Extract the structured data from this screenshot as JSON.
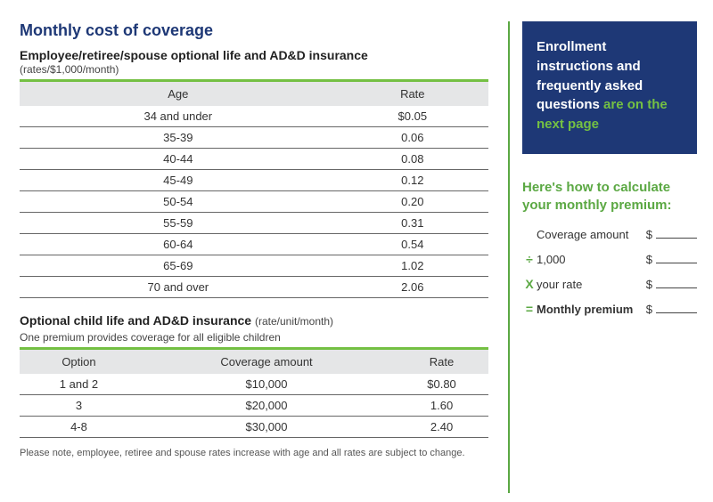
{
  "colors": {
    "navy": "#1e3876",
    "green": "#74c043",
    "green_dark": "#5ba843",
    "header_row_bg": "#e5e6e7",
    "row_border": "#666666",
    "text": "#333333"
  },
  "title": "Monthly cost of coverage",
  "employee_table": {
    "heading": "Employee/retiree/spouse optional life and AD&D insurance",
    "sub": "(rates/$1,000/month)",
    "columns": [
      "Age",
      "Rate"
    ],
    "rows": [
      [
        "34 and under",
        "$0.05"
      ],
      [
        "35-39",
        "0.06"
      ],
      [
        "40-44",
        "0.08"
      ],
      [
        "45-49",
        "0.12"
      ],
      [
        "50-54",
        "0.20"
      ],
      [
        "55-59",
        "0.31"
      ],
      [
        "60-64",
        "0.54"
      ],
      [
        "65-69",
        "1.02"
      ],
      [
        "70 and over",
        "2.06"
      ]
    ]
  },
  "child_table": {
    "heading": "Optional child life and AD&D insurance",
    "sub": "(rate/unit/month)",
    "subnote": "One premium provides coverage for all eligible children",
    "columns": [
      "Option",
      "Coverage amount",
      "Rate"
    ],
    "rows": [
      [
        "1 and 2",
        "$10,000",
        "$0.80"
      ],
      [
        "3",
        "$20,000",
        "1.60"
      ],
      [
        "4-8",
        "$30,000",
        "2.40"
      ]
    ]
  },
  "footnote": "Please note, employee, retiree and spouse rates increase with age and all rates are subject to change.",
  "callout": {
    "line1": "Enrollment instructions and frequently asked questions",
    "highlight": "are on the next page"
  },
  "calculator": {
    "title": "Here's how to calculate your monthly premium:",
    "rows": [
      {
        "op": "",
        "label": "Coverage amount",
        "bold": false
      },
      {
        "op": "÷",
        "label": "1,000",
        "bold": false
      },
      {
        "op": "X",
        "label": "your rate",
        "bold": false
      },
      {
        "op": "=",
        "label": "Monthly premium",
        "bold": true
      }
    ]
  }
}
